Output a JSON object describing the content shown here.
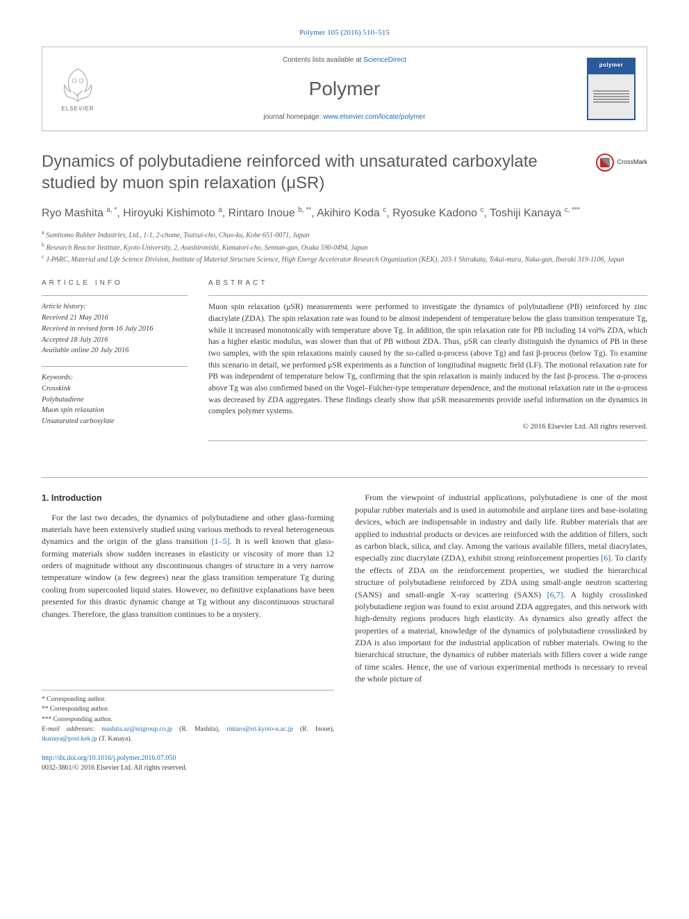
{
  "citation": "Polymer 105 (2016) 510–515",
  "header": {
    "contents_prefix": "Contents lists available at ",
    "contents_link": "ScienceDirect",
    "journal": "Polymer",
    "homepage_prefix": "journal homepage: ",
    "homepage_link": "www.elsevier.com/locate/polymer",
    "elsevier_label": "ELSEVIER",
    "cover_label": "polymer"
  },
  "title": "Dynamics of polybutadiene reinforced with unsaturated carboxylate studied by muon spin relaxation (μSR)",
  "crossmark": "CrossMark",
  "authors_html": "Ryo Mashita <sup>a, *</sup>, Hiroyuki Kishimoto <sup>a</sup>, Rintaro Inoue <sup>b, **</sup>, Akihiro Koda <sup>c</sup>, Ryosuke Kadono <sup>c</sup>, Toshiji Kanaya <sup>c, ***</sup>",
  "affiliations": {
    "a": "Sumitomo Rubber Industries, Ltd., 1-1, 2-chome, Tsutsui-cho, Chuo-ku, Kobe 651-0071, Japan",
    "b": "Research Reactor Institute, Kyoto University, 2, Asashironishi, Kumatori-cho, Sennan-gun, Osaka 590-0494, Japan",
    "c": "J-PARC, Material and Life Science Division, Institute of Material Structure Science, High Energy Accelerator Research Organization (KEK), 203-1 Shirakata, Tokai-mura, Naka-gun, Ibaraki 319-1106, Japan"
  },
  "article_info": {
    "heading": "ARTICLE INFO",
    "history_label": "Article history:",
    "received": "Received 21 May 2016",
    "revised": "Received in revised form 16 July 2016",
    "accepted": "Accepted 18 July 2016",
    "online": "Available online 20 July 2016",
    "keywords_label": "Keywords:",
    "keywords": [
      "Crosskink",
      "Polybutadiene",
      "Muon spin relaxation",
      "Unsaturated carboxylate"
    ]
  },
  "abstract": {
    "heading": "ABSTRACT",
    "text": "Muon spin relaxation (μSR) measurements were performed to investigate the dynamics of polybutadiene (PB) reinforced by zinc diacrylate (ZDA). The spin relaxation rate was found to be almost independent of temperature below the glass transition temperature Tg, while it increased monotonically with temperature above Tg. In addition, the spin relaxation rate for PB including 14 vol% ZDA, which has a higher elastic modulus, was slower than that of PB without ZDA. Thus, μSR can clearly distinguish the dynamics of PB in these two samples, with the spin relaxations mainly caused by the so-called α-process (above Tg) and fast β-process (below Tg). To examine this scenario in detail, we performed μSR experiments as a function of longitudinal magnetic field (LF). The motional relaxation rate for PB was independent of temperature below Tg, confirming that the spin relaxation is mainly induced by the fast β-process. The α-process above Tg was also confirmed based on the Vogel–Fulcher-type temperature dependence, and the motional relaxation rate in the α-process was decreased by ZDA aggregates. These findings clearly show that μSR measurements provide useful information on the dynamics in complex polymer systems.",
    "copyright": "© 2016 Elsevier Ltd. All rights reserved."
  },
  "body": {
    "section_heading": "1. Introduction",
    "col1_p1": "For the last two decades, the dynamics of polybutadiene and other glass-forming materials have been extensively studied using various methods to reveal heterogeneous dynamics and the origin of the glass transition [1–5]. It is well known that glass-forming materials show sudden increases in elasticity or viscosity of more than 12 orders of magnitude without any discontinuous changes of structure in a very narrow temperature window (a few degrees) near the glass transition temperature Tg during cooling from supercooled liquid states. However, no definitive explanations have been presented for this drastic dynamic change at Tg without any discontinuous structural changes. Therefore, the glass transition continues to be a mystery.",
    "col2_p1": "From the viewpoint of industrial applications, polybutadiene is one of the most popular rubber materials and is used in automobile and airplane tires and base-isolating devices, which are indispensable in industry and daily life. Rubber materials that are applied to industrial products or devices are reinforced with the addition of fillers, such as carbon black, silica, and clay. Among the various available fillers, metal diacrylates, especially zinc diacrylate (ZDA), exhibit strong reinforcement properties [6]. To clarify the effects of ZDA on the reinforcement properties, we studied the hierarchical structure of polybutadiene reinforced by ZDA using small-angle neutron scattering (SANS) and small-angle X-ray scattering (SAXS) [6,7]. A highly crosslinked polybutadiene region was found to exist around ZDA aggregates, and this network with high-density regions produces high elasticity. As dynamics also greatly affect the properties of a material, knowledge of the dynamics of polybutadiene crosslinked by ZDA is also important for the industrial application of rubber materials. Owing to the hierarchical structure, the dynamics of rubber materials with fillers cover a wide range of time scales. Hence, the use of various experimental methods is necessary to reveal the whole picture of"
  },
  "footnotes": {
    "c1": "* Corresponding author.",
    "c2": "** Corresponding author.",
    "c3": "*** Corresponding author.",
    "email_label": "E-mail addresses: ",
    "e1": "mashita.az@srigroup.co.jp",
    "e1_who": " (R. Mashita), ",
    "e2": "rintaro@rri.kyoto-u.ac.jp",
    "e2_who": " (R. Inoue), ",
    "e3": "tkanaya@post.kek.jp",
    "e3_who": " (T. Kanaya)."
  },
  "footer": {
    "doi": "http://dx.doi.org/10.1016/j.polymer.2016.07.050",
    "issn_line": "0032-3861/© 2016 Elsevier Ltd. All rights reserved."
  },
  "colors": {
    "link": "#1a6bb5",
    "text_gray": "#5a5a5a",
    "rule": "#aaaaaa",
    "cover_blue": "#2a5a9a",
    "crossmark_red": "#c8232c"
  }
}
